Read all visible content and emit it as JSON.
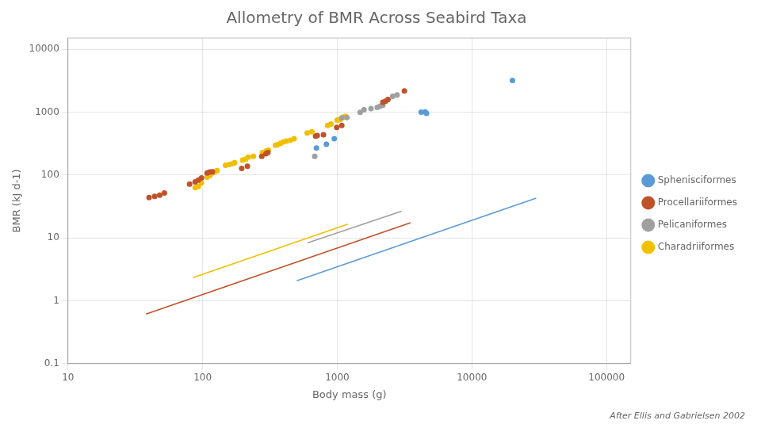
{
  "chart_data": {
    "type": "scatter",
    "title": "Allometry of BMR Across Seabird Taxa",
    "x_label": "Body mass (g)",
    "y_label": "BMR (kJ d-1)",
    "footnote": "After Ellis and Gabrielsen 2002",
    "log": true,
    "grid": true,
    "legend": "right",
    "xlim": [
      10,
      151356.12
    ],
    "ylim": [
      0.1,
      15135.61
    ],
    "xticks": [
      10,
      100,
      1000,
      10000,
      100000
    ],
    "yticks": [
      0.1,
      1,
      10,
      100,
      1000,
      10000
    ],
    "series": [
      {
        "name": "Sphenisciformes",
        "color": "#5B9BD5",
        "type": "scatter",
        "values": [
          [
            700,
            270
          ],
          [
            830,
            310
          ],
          [
            950,
            380
          ],
          [
            4200,
            1000
          ],
          [
            4500,
            1010
          ],
          [
            4600,
            960
          ],
          [
            20000,
            3200
          ]
        ]
      },
      {
        "color": "#5B9BD5",
        "type": "line",
        "values": [
          [
            500,
            2.076
          ],
          [
            30000,
            42.96
          ]
        ]
      },
      {
        "name": "Procellariiformes",
        "color": "#C0522A",
        "type": "scatter",
        "values": [
          [
            40,
            44
          ],
          [
            44,
            46
          ],
          [
            48,
            48
          ],
          [
            52,
            52
          ],
          [
            80,
            72
          ],
          [
            88,
            78
          ],
          [
            93,
            83
          ],
          [
            98,
            90
          ],
          [
            108,
            108
          ],
          [
            113,
            112
          ],
          [
            118,
            113
          ],
          [
            195,
            128
          ],
          [
            215,
            138
          ],
          [
            275,
            198
          ],
          [
            295,
            218
          ],
          [
            305,
            228
          ],
          [
            690,
            415
          ],
          [
            710,
            425
          ],
          [
            790,
            438
          ],
          [
            990,
            575
          ],
          [
            1080,
            615
          ],
          [
            2180,
            1440
          ],
          [
            2280,
            1490
          ],
          [
            2380,
            1590
          ],
          [
            3150,
            2180
          ]
        ]
      },
      {
        "color": "#C0522A",
        "type": "line",
        "values": [
          [
            38,
            0.6152
          ],
          [
            3500,
            17.48
          ]
        ]
      },
      {
        "name": "Pelicaniformes",
        "color": "#A0A0A0",
        "type": "scatter",
        "values": [
          [
            680,
            198
          ],
          [
            1080,
            815
          ],
          [
            1180,
            825
          ],
          [
            1480,
            995
          ],
          [
            1580,
            1090
          ],
          [
            1780,
            1140
          ],
          [
            1980,
            1195
          ],
          [
            2080,
            1245
          ],
          [
            2180,
            1295
          ],
          [
            2580,
            1790
          ],
          [
            2780,
            1880
          ]
        ]
      },
      {
        "color": "#A0A0A0",
        "type": "line",
        "values": [
          [
            600,
            8.323
          ],
          [
            3000,
            26.52
          ]
        ]
      },
      {
        "name": "Charadriiformes",
        "color": "#F0C000",
        "type": "scatter",
        "values": [
          [
            88,
            63
          ],
          [
            93,
            66
          ],
          [
            98,
            75
          ],
          [
            108,
            93
          ],
          [
            113,
            98
          ],
          [
            118,
            108
          ],
          [
            123,
            113
          ],
          [
            128,
            118
          ],
          [
            148,
            143
          ],
          [
            158,
            148
          ],
          [
            168,
            153
          ],
          [
            173,
            158
          ],
          [
            198,
            173
          ],
          [
            208,
            178
          ],
          [
            218,
            193
          ],
          [
            238,
            198
          ],
          [
            278,
            228
          ],
          [
            298,
            243
          ],
          [
            308,
            248
          ],
          [
            348,
            298
          ],
          [
            358,
            303
          ],
          [
            378,
            318
          ],
          [
            398,
            338
          ],
          [
            418,
            348
          ],
          [
            448,
            358
          ],
          [
            478,
            378
          ],
          [
            598,
            468
          ],
          [
            648,
            488
          ],
          [
            848,
            618
          ],
          [
            898,
            648
          ],
          [
            998,
            748
          ],
          [
            1048,
            758
          ],
          [
            1098,
            828
          ],
          [
            1148,
            858
          ]
        ]
      },
      {
        "color": "#F0C000",
        "type": "line",
        "values": [
          [
            85,
            2.332
          ],
          [
            1200,
            16.54
          ]
        ]
      }
    ]
  }
}
